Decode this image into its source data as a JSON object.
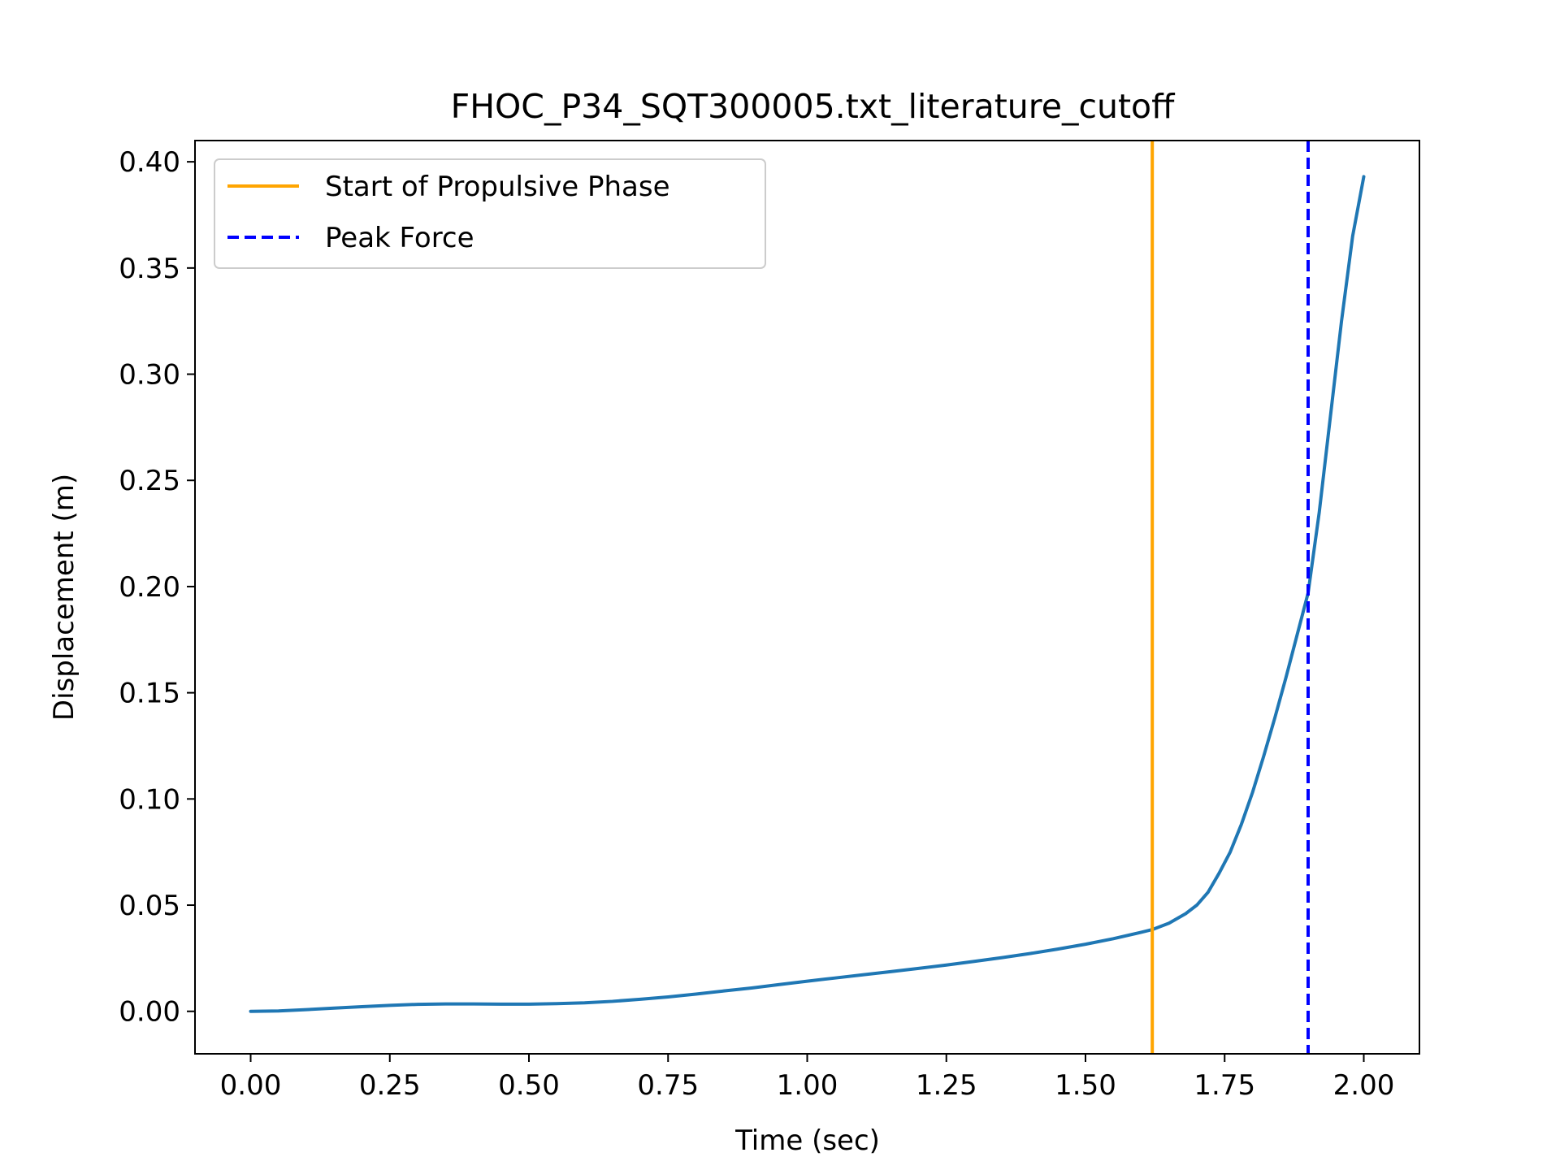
{
  "chart_data": {
    "type": "line",
    "title": "FHOC_P34_SQT300005.txt_literature_cutoff",
    "xlabel": "Time (sec)",
    "ylabel": "Displacement (m)",
    "xlim": [
      -0.1,
      2.1
    ],
    "ylim": [
      -0.02,
      0.41
    ],
    "xticks": [
      "0.00",
      "0.25",
      "0.50",
      "0.75",
      "1.00",
      "1.25",
      "1.50",
      "1.75",
      "2.00"
    ],
    "yticks": [
      "0.00",
      "0.05",
      "0.10",
      "0.15",
      "0.20",
      "0.25",
      "0.30",
      "0.35",
      "0.40"
    ],
    "grid": false,
    "legend_position": "upper-left",
    "series": [
      {
        "color": "#1f77b4",
        "x": [
          0.0,
          0.05,
          0.1,
          0.15,
          0.2,
          0.25,
          0.3,
          0.35,
          0.4,
          0.45,
          0.5,
          0.55,
          0.6,
          0.65,
          0.7,
          0.75,
          0.8,
          0.85,
          0.9,
          0.95,
          1.0,
          1.05,
          1.1,
          1.15,
          1.2,
          1.25,
          1.3,
          1.35,
          1.4,
          1.45,
          1.5,
          1.55,
          1.6,
          1.62,
          1.65,
          1.68,
          1.7,
          1.72,
          1.74,
          1.76,
          1.78,
          1.8,
          1.82,
          1.84,
          1.86,
          1.88,
          1.9,
          1.92,
          1.94,
          1.96,
          1.98,
          2.0
        ],
        "y": [
          0.0,
          0.0002,
          0.0008,
          0.0015,
          0.0022,
          0.0028,
          0.0033,
          0.0035,
          0.0035,
          0.0034,
          0.0034,
          0.0036,
          0.004,
          0.0047,
          0.0057,
          0.0068,
          0.0081,
          0.0096,
          0.011,
          0.0126,
          0.0142,
          0.0157,
          0.0172,
          0.0187,
          0.0202,
          0.0218,
          0.0235,
          0.0253,
          0.0272,
          0.0293,
          0.0316,
          0.0342,
          0.0372,
          0.0385,
          0.0415,
          0.046,
          0.05,
          0.056,
          0.065,
          0.075,
          0.088,
          0.103,
          0.12,
          0.138,
          0.157,
          0.177,
          0.197,
          0.235,
          0.28,
          0.325,
          0.365,
          0.393
        ]
      }
    ],
    "vlines": [
      {
        "name": "Start of Propulsive Phase",
        "x": 1.62,
        "color": "#ffa500",
        "style": "solid"
      },
      {
        "name": "Peak Force",
        "x": 1.9,
        "color": "#0000ff",
        "style": "dashed"
      }
    ]
  }
}
